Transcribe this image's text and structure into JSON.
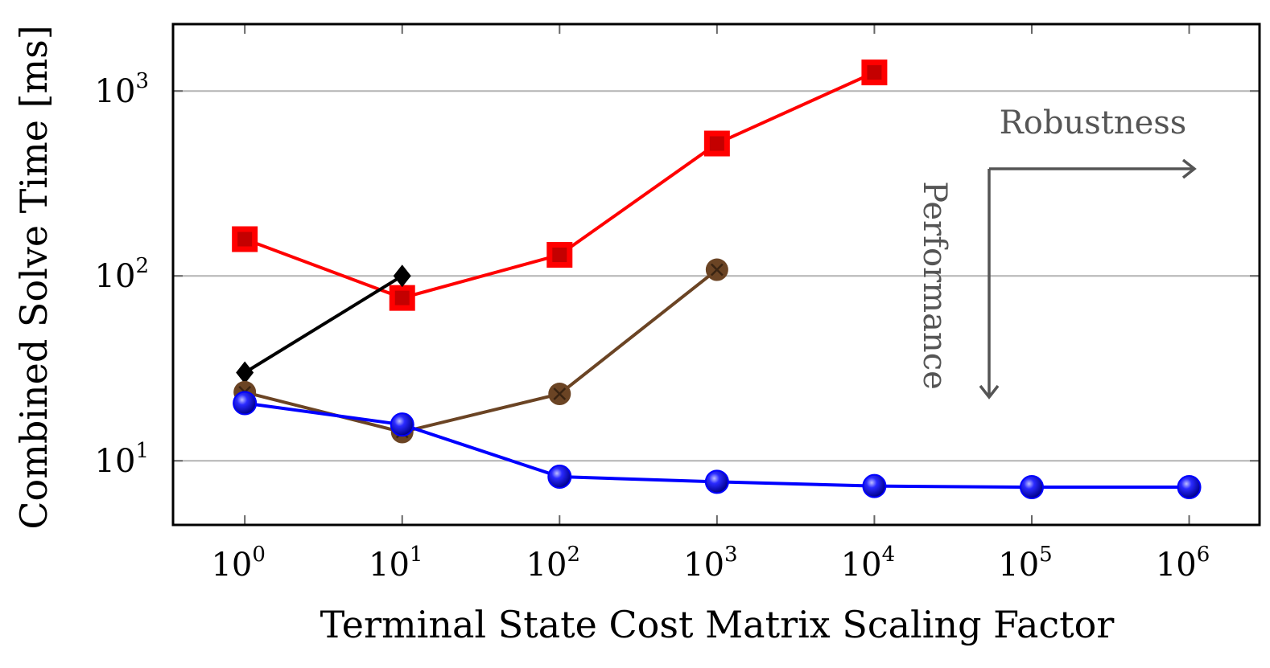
{
  "chart_data": {
    "type": "line",
    "xlabel": "Terminal State Cost Matrix Scaling Factor",
    "ylabel": "Combined Solve Time [ms]",
    "x_scale": "log",
    "y_scale": "log",
    "xlim": [
      0.35,
      2800000
    ],
    "ylim": [
      4.5,
      2300
    ],
    "x_ticks": [
      {
        "base": "10",
        "exp": "0",
        "value": 1
      },
      {
        "base": "10",
        "exp": "1",
        "value": 10
      },
      {
        "base": "10",
        "exp": "2",
        "value": 100
      },
      {
        "base": "10",
        "exp": "3",
        "value": 1000
      },
      {
        "base": "10",
        "exp": "4",
        "value": 10000
      },
      {
        "base": "10",
        "exp": "5",
        "value": 100000
      },
      {
        "base": "10",
        "exp": "6",
        "value": 1000000
      }
    ],
    "y_ticks": [
      {
        "base": "10",
        "exp": "1",
        "value": 10
      },
      {
        "base": "10",
        "exp": "2",
        "value": 100
      },
      {
        "base": "10",
        "exp": "3",
        "value": 1000
      }
    ],
    "grid": "horizontal",
    "series": [
      {
        "marker": "square",
        "color": "#ff0000",
        "x": [
          1,
          10,
          100,
          1000,
          10000
        ],
        "y": [
          158,
          76,
          130,
          520,
          1260
        ]
      },
      {
        "marker": "diamond",
        "color": "#000000",
        "x": [
          1,
          10
        ],
        "y": [
          30,
          100
        ]
      },
      {
        "marker": "circle-cross",
        "color": "#6b4424",
        "x": [
          1,
          10,
          100,
          1000
        ],
        "y": [
          23.5,
          14.3,
          23,
          108
        ]
      },
      {
        "marker": "ball",
        "color": "#0000ff",
        "x": [
          1,
          10,
          100,
          1000,
          10000,
          100000,
          1000000
        ],
        "y": [
          20.5,
          15.7,
          8.2,
          7.7,
          7.3,
          7.2,
          7.2
        ]
      }
    ],
    "annotations": {
      "robustness": "Robustness",
      "performance": "Performance",
      "color": "#555555"
    }
  }
}
